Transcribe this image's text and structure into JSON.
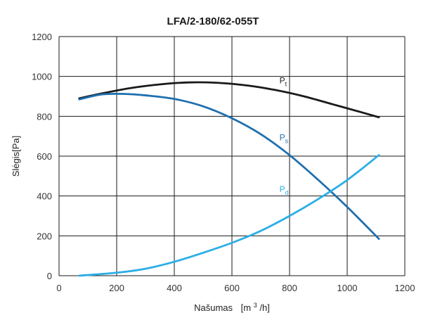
{
  "chart_data": {
    "type": "line",
    "title": "LFA/2-180/62-055T",
    "xlabel": "Našumas",
    "xlabel_unit_prefix": "[m",
    "xlabel_unit_sup": "3",
    "xlabel_unit_suffix": "/h]",
    "ylabel": "Slėgis[Pa]",
    "xlim": [
      0,
      1200
    ],
    "ylim": [
      0,
      1200
    ],
    "xticks": [
      "0",
      "200",
      "400",
      "600",
      "800",
      "1000",
      "1200"
    ],
    "yticks": [
      "0",
      "200",
      "400",
      "600",
      "800",
      "1000",
      "1200"
    ],
    "grid": true,
    "series": [
      {
        "name_main": "P",
        "name_sub": "t",
        "color": "#1a1a1a",
        "label_at": [
          760,
          965
        ],
        "points": [
          [
            70,
            890
          ],
          [
            150,
            915
          ],
          [
            250,
            942
          ],
          [
            350,
            960
          ],
          [
            450,
            970
          ],
          [
            550,
            968
          ],
          [
            650,
            955
          ],
          [
            750,
            932
          ],
          [
            850,
            900
          ],
          [
            950,
            860
          ],
          [
            1050,
            820
          ],
          [
            1110,
            795
          ]
        ]
      },
      {
        "name_main": "P",
        "name_sub": "s",
        "color": "#1f6fae",
        "label_at": [
          760,
          680
        ],
        "points": [
          [
            70,
            885
          ],
          [
            150,
            910
          ],
          [
            230,
            912
          ],
          [
            300,
            905
          ],
          [
            400,
            887
          ],
          [
            500,
            850
          ],
          [
            600,
            790
          ],
          [
            700,
            710
          ],
          [
            800,
            605
          ],
          [
            900,
            480
          ],
          [
            1000,
            345
          ],
          [
            1110,
            185
          ]
        ]
      },
      {
        "name_main": "P",
        "name_sub": "d",
        "color": "#2aaee6",
        "label_at": [
          760,
          420
        ],
        "points": [
          [
            70,
            0
          ],
          [
            200,
            15
          ],
          [
            300,
            35
          ],
          [
            400,
            70
          ],
          [
            500,
            115
          ],
          [
            600,
            165
          ],
          [
            700,
            225
          ],
          [
            800,
            300
          ],
          [
            900,
            385
          ],
          [
            1000,
            480
          ],
          [
            1110,
            605
          ]
        ]
      }
    ]
  }
}
